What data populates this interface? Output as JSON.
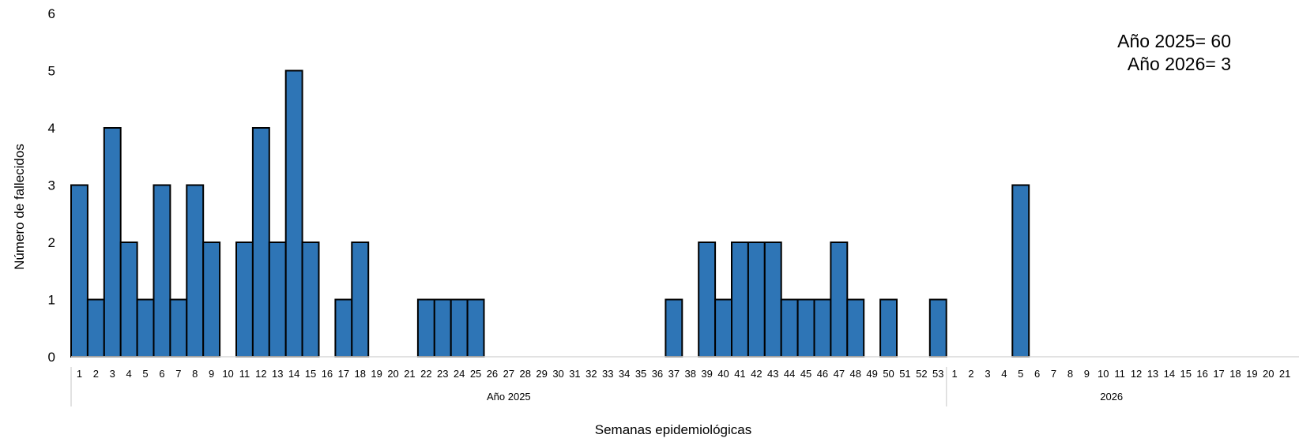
{
  "chart_data": {
    "type": "bar",
    "xlabel": "Semanas epidemiológicas",
    "ylabel": "Número de fallecidos",
    "ylim": [
      0,
      6
    ],
    "yticks": [
      "0",
      "1",
      "2",
      "3",
      "4",
      "5",
      "6"
    ],
    "grid": false,
    "bar_color": "#2E75B6",
    "bar_edge_color": "#000000",
    "groups": [
      {
        "label": "Año 2025",
        "categories": [
          "1",
          "2",
          "3",
          "4",
          "5",
          "6",
          "7",
          "8",
          "9",
          "10",
          "11",
          "12",
          "13",
          "14",
          "15",
          "16",
          "17",
          "18",
          "19",
          "20",
          "21",
          "22",
          "23",
          "24",
          "25",
          "26",
          "27",
          "28",
          "29",
          "30",
          "31",
          "32",
          "33",
          "34",
          "35",
          "36",
          "37",
          "38",
          "39",
          "40",
          "41",
          "42",
          "43",
          "44",
          "45",
          "46",
          "47",
          "48",
          "49",
          "50",
          "51",
          "52",
          "53"
        ],
        "values": [
          3,
          1,
          4,
          2,
          1,
          3,
          1,
          3,
          2,
          0,
          2,
          4,
          2,
          5,
          2,
          0,
          1,
          2,
          0,
          0,
          0,
          1,
          1,
          1,
          1,
          0,
          0,
          0,
          0,
          0,
          0,
          0,
          0,
          0,
          0,
          0,
          1,
          0,
          2,
          1,
          2,
          2,
          2,
          1,
          1,
          1,
          2,
          1,
          0,
          1,
          0,
          0,
          1
        ]
      },
      {
        "label": "2026",
        "categories": [
          "1",
          "2",
          "3",
          "4",
          "5",
          "6",
          "7",
          "8",
          "9",
          "10",
          "11",
          "12",
          "13",
          "14",
          "15",
          "16",
          "17",
          "18",
          "19",
          "20",
          "21",
          "2"
        ],
        "values": [
          0,
          0,
          0,
          0,
          3,
          0,
          0,
          0,
          0,
          0,
          0,
          0,
          0,
          0,
          0,
          0,
          0,
          0,
          0,
          0,
          0,
          0
        ]
      }
    ],
    "annotations": [
      "Año 2025= 60",
      "Año 2026= 3"
    ]
  }
}
